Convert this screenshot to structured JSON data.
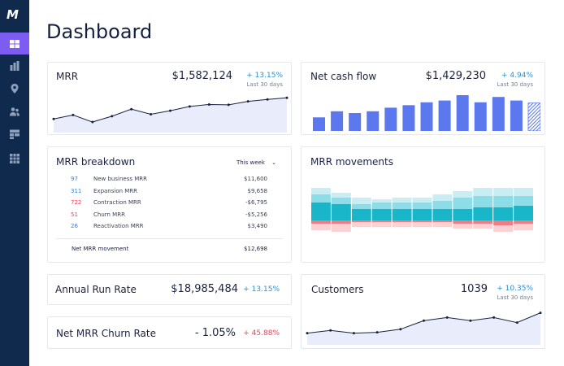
{
  "app": {
    "logo": "M"
  },
  "sidebar": {
    "items": [
      {
        "icon": "dashboard-icon",
        "active": true
      },
      {
        "icon": "bar-chart-icon",
        "active": false
      },
      {
        "icon": "location-pin-icon",
        "active": false
      },
      {
        "icon": "users-icon",
        "active": false
      },
      {
        "icon": "layout-icon",
        "active": false
      },
      {
        "icon": "grid-icon",
        "active": false
      }
    ]
  },
  "page": {
    "title": "Dashboard"
  },
  "mrr": {
    "title": "MRR",
    "value": "$1,582,124",
    "change": "+ 13.15%",
    "period": "Last 30 days",
    "series": [
      0.35,
      0.45,
      0.27,
      0.42,
      0.6,
      0.47,
      0.56,
      0.67,
      0.72,
      0.71,
      0.8,
      0.85,
      0.89
    ]
  },
  "net_cash_flow": {
    "title": "Net cash flow",
    "value": "$1,429,230",
    "change": "+ 4.94%",
    "period": "Last 30 days",
    "bars": [
      0.38,
      0.55,
      0.5,
      0.55,
      0.65,
      0.72,
      0.8,
      0.85,
      1.0,
      0.8,
      0.95,
      0.85,
      0.78
    ],
    "colors": {
      "bar": "#5b78ee",
      "projected": "#5b78ee"
    }
  },
  "mrr_breakdown": {
    "title": "MRR breakdown",
    "period_selector": "This week",
    "rows": [
      {
        "count": "97",
        "label": "New business MRR",
        "amount": "$11,600",
        "color": "#3a7bd5"
      },
      {
        "count": "311",
        "label": "Expansion MRR",
        "amount": "$9,658",
        "color": "#3a7bd5"
      },
      {
        "count": "722",
        "label": "Contraction MRR",
        "amount": "-$6,795",
        "color": "#e8455a"
      },
      {
        "count": "51",
        "label": "Churn MRR",
        "amount": "-$5,256",
        "color": "#e8455a"
      },
      {
        "count": "26",
        "label": "Reactivation MRR",
        "amount": "$3,490",
        "color": "#3a7bd5"
      }
    ],
    "total_label": "Net MRR movement",
    "total_amount": "$12,698"
  },
  "mrr_movements": {
    "title": "MRR movements",
    "colors": {
      "dark": "#19b6c9",
      "mid": "#8cdde8",
      "light": "#c8eef3",
      "red": "#f07c84",
      "pink": "#fbd2d3"
    },
    "segments": [
      [
        0.55,
        0.25,
        0.2,
        0.1,
        0.2
      ],
      [
        0.5,
        0.2,
        0.15,
        0.1,
        0.25
      ],
      [
        0.35,
        0.15,
        0.2,
        0.05,
        0.15
      ],
      [
        0.35,
        0.2,
        0.1,
        0.05,
        0.15
      ],
      [
        0.35,
        0.2,
        0.15,
        0.05,
        0.15
      ],
      [
        0.35,
        0.2,
        0.15,
        0.05,
        0.15
      ],
      [
        0.35,
        0.25,
        0.2,
        0.05,
        0.15
      ],
      [
        0.35,
        0.35,
        0.2,
        0.1,
        0.15
      ],
      [
        0.4,
        0.35,
        0.25,
        0.1,
        0.15
      ],
      [
        0.4,
        0.35,
        0.25,
        0.15,
        0.2
      ],
      [
        0.45,
        0.3,
        0.25,
        0.1,
        0.2
      ]
    ]
  },
  "annual_run_rate": {
    "title": "Annual Run Rate",
    "value": "$18,985,484",
    "change": "+ 13.15%"
  },
  "net_mrr_churn": {
    "title": "Net MRR Churn Rate",
    "value": "- 1.05%",
    "change": "+ 45.88%"
  },
  "customers": {
    "title": "Customers",
    "value": "1039",
    "change": "+ 10.35%",
    "period": "Last 30 days",
    "series": [
      0.3,
      0.37,
      0.3,
      0.32,
      0.4,
      0.62,
      0.7,
      0.62,
      0.7,
      0.57,
      0.82
    ]
  }
}
